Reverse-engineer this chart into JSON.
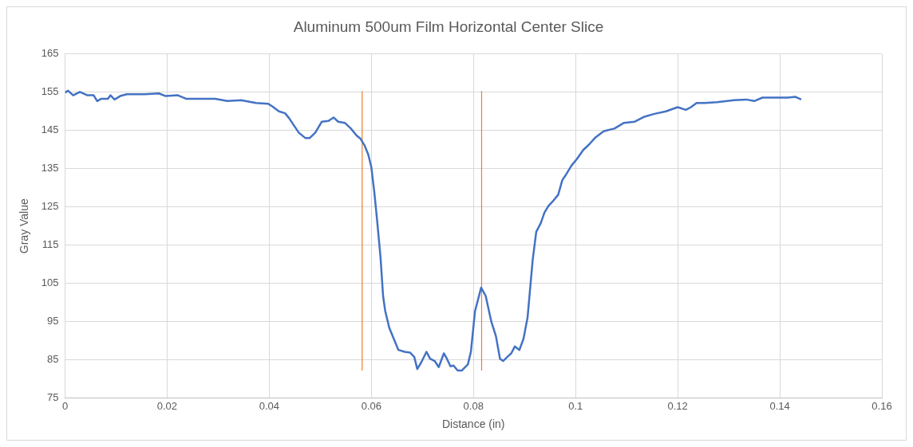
{
  "chart_data": {
    "type": "line",
    "title": "Aluminum 500um Film Horizontal Center Slice",
    "xlabel": "Distance (in)",
    "ylabel": "Gray Value",
    "xlim": [
      0,
      0.16
    ],
    "xticks": [
      0,
      0.02,
      0.04,
      0.06,
      0.08,
      0.1,
      0.12,
      0.14,
      0.16
    ],
    "ylim": [
      75,
      165
    ],
    "yticks": [
      75,
      85,
      95,
      105,
      115,
      125,
      135,
      145,
      155,
      165
    ],
    "grid": true,
    "legend": false,
    "marker": "none",
    "line_style": "solid",
    "series": [
      {
        "color": "#4472c4",
        "x": [
          0,
          0.0006,
          0.0016,
          0.0029,
          0.0044,
          0.0056,
          0.0063,
          0.0071,
          0.0084,
          0.0089,
          0.0097,
          0.0108,
          0.0121,
          0.014,
          0.0156,
          0.0184,
          0.0197,
          0.0221,
          0.0237,
          0.0261,
          0.0294,
          0.0318,
          0.0345,
          0.0374,
          0.0398,
          0.0406,
          0.0419,
          0.0431,
          0.0439,
          0.0447,
          0.0458,
          0.0471,
          0.0479,
          0.049,
          0.0503,
          0.0516,
          0.0526,
          0.0535,
          0.0548,
          0.056,
          0.0571,
          0.0579,
          0.0587,
          0.0594,
          0.06,
          0.0606,
          0.0611,
          0.0618,
          0.0623,
          0.0627,
          0.0635,
          0.0644,
          0.0653,
          0.0665,
          0.0676,
          0.0684,
          0.069,
          0.0698,
          0.0708,
          0.0715,
          0.0724,
          0.0732,
          0.0742,
          0.0748,
          0.0755,
          0.0761,
          0.0769,
          0.0777,
          0.0789,
          0.0795,
          0.0803,
          0.0815,
          0.0824,
          0.0835,
          0.0844,
          0.0852,
          0.0858,
          0.0868,
          0.0874,
          0.0881,
          0.089,
          0.0898,
          0.0906,
          0.0916,
          0.0923,
          0.0932,
          0.0939,
          0.0947,
          0.0955,
          0.0966,
          0.0974,
          0.0982,
          0.0992,
          0.1003,
          0.1015,
          0.1027,
          0.1039,
          0.1055,
          0.1076,
          0.1095,
          0.1116,
          0.1135,
          0.1153,
          0.1177,
          0.12,
          0.1216,
          0.1226,
          0.1237,
          0.1253,
          0.1277,
          0.131,
          0.1334,
          0.135,
          0.1366,
          0.1398,
          0.1415,
          0.1431,
          0.1442
        ],
        "values": [
          154.9,
          155.4,
          154.2,
          155.1,
          154.2,
          154.2,
          152.7,
          153.3,
          153.3,
          154.2,
          153.1,
          154.0,
          154.5,
          154.5,
          154.5,
          154.7,
          154.0,
          154.2,
          153.3,
          153.3,
          153.3,
          152.7,
          152.9,
          152.2,
          152.0,
          151.3,
          150.0,
          149.5,
          148.2,
          146.6,
          144.4,
          143.0,
          143.0,
          144.4,
          147.3,
          147.5,
          148.4,
          147.3,
          147.0,
          145.5,
          143.7,
          142.8,
          141.0,
          138.7,
          135.4,
          128.6,
          121.9,
          111.8,
          101.7,
          97.9,
          93.4,
          90.5,
          87.6,
          87.1,
          86.9,
          85.8,
          82.6,
          84.4,
          87.1,
          85.3,
          84.7,
          83.1,
          86.7,
          85.3,
          83.3,
          83.5,
          82.2,
          82.2,
          83.8,
          87.1,
          97.7,
          103.9,
          101.7,
          95.0,
          91.2,
          85.3,
          84.7,
          86.0,
          86.7,
          88.5,
          87.6,
          90.5,
          96.1,
          111.1,
          118.5,
          120.8,
          123.5,
          125.3,
          126.4,
          128.2,
          132.0,
          133.6,
          135.8,
          137.6,
          139.9,
          141.4,
          143.2,
          144.8,
          145.5,
          147.0,
          147.3,
          148.6,
          149.3,
          150.0,
          151.1,
          150.4,
          151.1,
          152.2,
          152.2,
          152.4,
          152.9,
          153.1,
          152.7,
          153.6,
          153.6,
          153.6,
          153.8,
          153.1
        ]
      },
      {
        "color": "#ed7d31",
        "x": [
          0.0582,
          0.0582
        ],
        "values": [
          82.2,
          155.3
        ]
      },
      {
        "color": "#ed7d31",
        "x": [
          0.0816,
          0.0816
        ],
        "values": [
          82.2,
          155.3
        ]
      }
    ]
  }
}
